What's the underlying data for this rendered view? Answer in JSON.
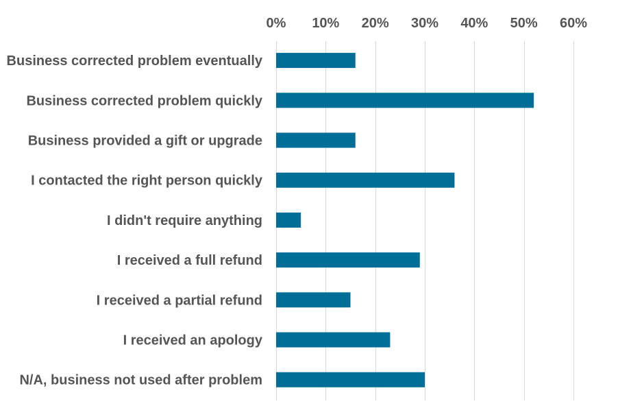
{
  "chart_data": {
    "type": "bar",
    "orientation": "horizontal",
    "categories": [
      "Business corrected problem eventually",
      "Business corrected problem quickly",
      "Business provided a gift or upgrade",
      "I contacted the right person quickly",
      "I didn't require anything",
      "I received a full refund",
      "I received a partial refund",
      "I received an apology",
      "N/A, business not used after problem"
    ],
    "values": [
      16,
      52,
      16,
      36,
      5,
      29,
      15,
      23,
      30
    ],
    "value_unit": "%",
    "xlim": [
      0,
      60
    ],
    "x_ticks": [
      0,
      10,
      20,
      30,
      40,
      50,
      60
    ],
    "x_tick_labels": [
      "0%",
      "10%",
      "20%",
      "30%",
      "40%",
      "50%",
      "60%"
    ],
    "x_axis_position": "top",
    "grid": true,
    "legend": "none",
    "bar_color": "#006e96",
    "grid_color": "#d9d9d9",
    "label_color": "#555555"
  }
}
